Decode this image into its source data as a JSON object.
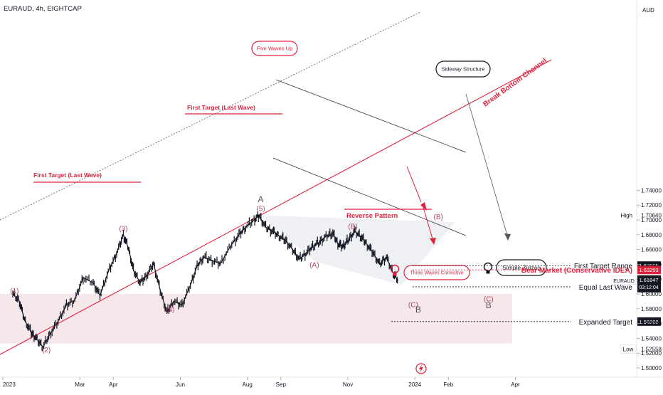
{
  "header": {
    "title": "EURAUD, 4h, EIGHTCAP",
    "currency": "AUD"
  },
  "chart_data": {
    "type": "line",
    "title": "EURAUD, 4h, EIGHTCAP",
    "ylim": [
      1.49,
      1.755
    ],
    "y_ticks": [
      "1.74000",
      "1.72000",
      "1.70000",
      "1.68000",
      "1.66000",
      "1.64000",
      "1.62000",
      "1.60000",
      "1.58000",
      "1.56000",
      "1.54000",
      "1.52000",
      "1.50000"
    ],
    "x_ticks": [
      {
        "label": "2023",
        "month": 0
      },
      {
        "label": "Mar",
        "month": 2
      },
      {
        "label": "Apr",
        "month": 3
      },
      {
        "label": "Jun",
        "month": 5
      },
      {
        "label": "Aug",
        "month": 7
      },
      {
        "label": "Sep",
        "month": 8
      },
      {
        "label": "Nov",
        "month": 10
      },
      {
        "label": "2024",
        "month": 12
      },
      {
        "label": "Feb",
        "month": 13
      },
      {
        "label": "Apr",
        "month": 15
      }
    ],
    "price_path": [
      [
        0.0,
        1.6
      ],
      [
        0.2,
        1.59
      ],
      [
        0.35,
        1.565
      ],
      [
        0.55,
        1.548
      ],
      [
        0.7,
        1.54
      ],
      [
        0.9,
        1.528
      ],
      [
        1.1,
        1.545
      ],
      [
        1.35,
        1.563
      ],
      [
        1.6,
        1.585
      ],
      [
        1.85,
        1.592
      ],
      [
        2.1,
        1.622
      ],
      [
        2.4,
        1.615
      ],
      [
        2.6,
        1.598
      ],
      [
        2.85,
        1.63
      ],
      [
        3.1,
        1.655
      ],
      [
        3.3,
        1.68
      ],
      [
        3.45,
        1.662
      ],
      [
        3.6,
        1.632
      ],
      [
        3.8,
        1.615
      ],
      [
        4.0,
        1.625
      ],
      [
        4.2,
        1.641
      ],
      [
        4.4,
        1.605
      ],
      [
        4.6,
        1.575
      ],
      [
        4.8,
        1.59
      ],
      [
        5.05,
        1.585
      ],
      [
        5.3,
        1.612
      ],
      [
        5.5,
        1.638
      ],
      [
        5.7,
        1.65
      ],
      [
        5.95,
        1.645
      ],
      [
        6.2,
        1.641
      ],
      [
        6.5,
        1.665
      ],
      [
        6.75,
        1.68
      ],
      [
        6.95,
        1.69
      ],
      [
        7.2,
        1.7
      ],
      [
        7.35,
        1.706
      ],
      [
        7.55,
        1.69
      ],
      [
        7.75,
        1.685
      ],
      [
        7.95,
        1.678
      ],
      [
        8.15,
        1.672
      ],
      [
        8.35,
        1.66
      ],
      [
        8.55,
        1.647
      ],
      [
        8.75,
        1.655
      ],
      [
        8.95,
        1.664
      ],
      [
        9.15,
        1.67
      ],
      [
        9.35,
        1.678
      ],
      [
        9.55,
        1.682
      ],
      [
        9.7,
        1.668
      ],
      [
        9.85,
        1.664
      ],
      [
        10.0,
        1.672
      ],
      [
        10.2,
        1.685
      ],
      [
        10.4,
        1.677
      ],
      [
        10.55,
        1.668
      ],
      [
        10.75,
        1.656
      ],
      [
        10.95,
        1.64
      ],
      [
        11.15,
        1.65
      ],
      [
        11.35,
        1.628
      ],
      [
        11.5,
        1.618
      ]
    ],
    "highlight_zone": {
      "from_month": 0,
      "to_month": 14.9,
      "y_low": 1.533,
      "y_high": 1.6
    },
    "wave_labels": [
      {
        "text": "(1)",
        "month": 0.05,
        "y": 1.601
      },
      {
        "text": "(2)",
        "month": 1.0,
        "y": 1.521
      },
      {
        "text": "(3)",
        "month": 3.3,
        "y": 1.685
      },
      {
        "text": "(4)",
        "month": 4.7,
        "y": 1.576
      },
      {
        "text": "(5)",
        "month": 7.4,
        "y": 1.712
      },
      {
        "text": "A",
        "month": 7.4,
        "y": 1.724
      },
      {
        "text": "(A)",
        "month": 9.0,
        "y": 1.636
      },
      {
        "text": "(B)",
        "month": 10.15,
        "y": 1.688
      },
      {
        "text": "(B)",
        "month": 12.7,
        "y": 1.701
      },
      {
        "text": "(C)",
        "month": 11.95,
        "y": 1.582
      },
      {
        "text": "B",
        "month": 12.1,
        "y": 1.575
      },
      {
        "text": "(C)",
        "month": 14.2,
        "y": 1.59
      },
      {
        "text": "B",
        "month": 14.2,
        "y": 1.581
      }
    ],
    "annotations": {
      "five_waves_up": "Five Waves Up",
      "sideway_structure": "Sideway Structure",
      "break_bottom_channel": "Break Bottom Channel",
      "first_target_last_wave": "First Target (Last Wave)",
      "reverse_pattern": "Reverse Pattern",
      "three_waves_corrective": "Three Waves Corrective",
      "simple_zigzag": "Simple Zigzag"
    },
    "levels": [
      {
        "name": "First Target Range",
        "value": "1.63825",
        "y": 1.63825,
        "box_color": "#131722",
        "text_color": "#131722"
      },
      {
        "name": "Bear Market (Conservative IDEA)",
        "value": "1.63253",
        "y": 1.63253,
        "box_color": "#e0213c",
        "text_color": "#e0213c"
      },
      {
        "name": "Equal Last Wave",
        "value": "1.60966",
        "y": 1.60966,
        "box_color": "#131722",
        "text_color": "#131722"
      },
      {
        "name": "Expanded Target",
        "value": "1.56268",
        "y": 1.56268,
        "box_color": "#131722",
        "text_color": "#131722"
      }
    ],
    "high": {
      "label": "High",
      "value": "1.70640",
      "y": 1.7064
    },
    "low": {
      "label": "Low",
      "value": "1.52558",
      "y": 1.52558
    },
    "current": {
      "symbol": "EURAUD",
      "value": "1.61847",
      "countdown": "03:12:04",
      "y": 1.61847
    },
    "colors": {
      "up": "#131722",
      "accent": "#e0213c",
      "zone": "#f3dfe3",
      "wave": "#a94a64"
    }
  }
}
